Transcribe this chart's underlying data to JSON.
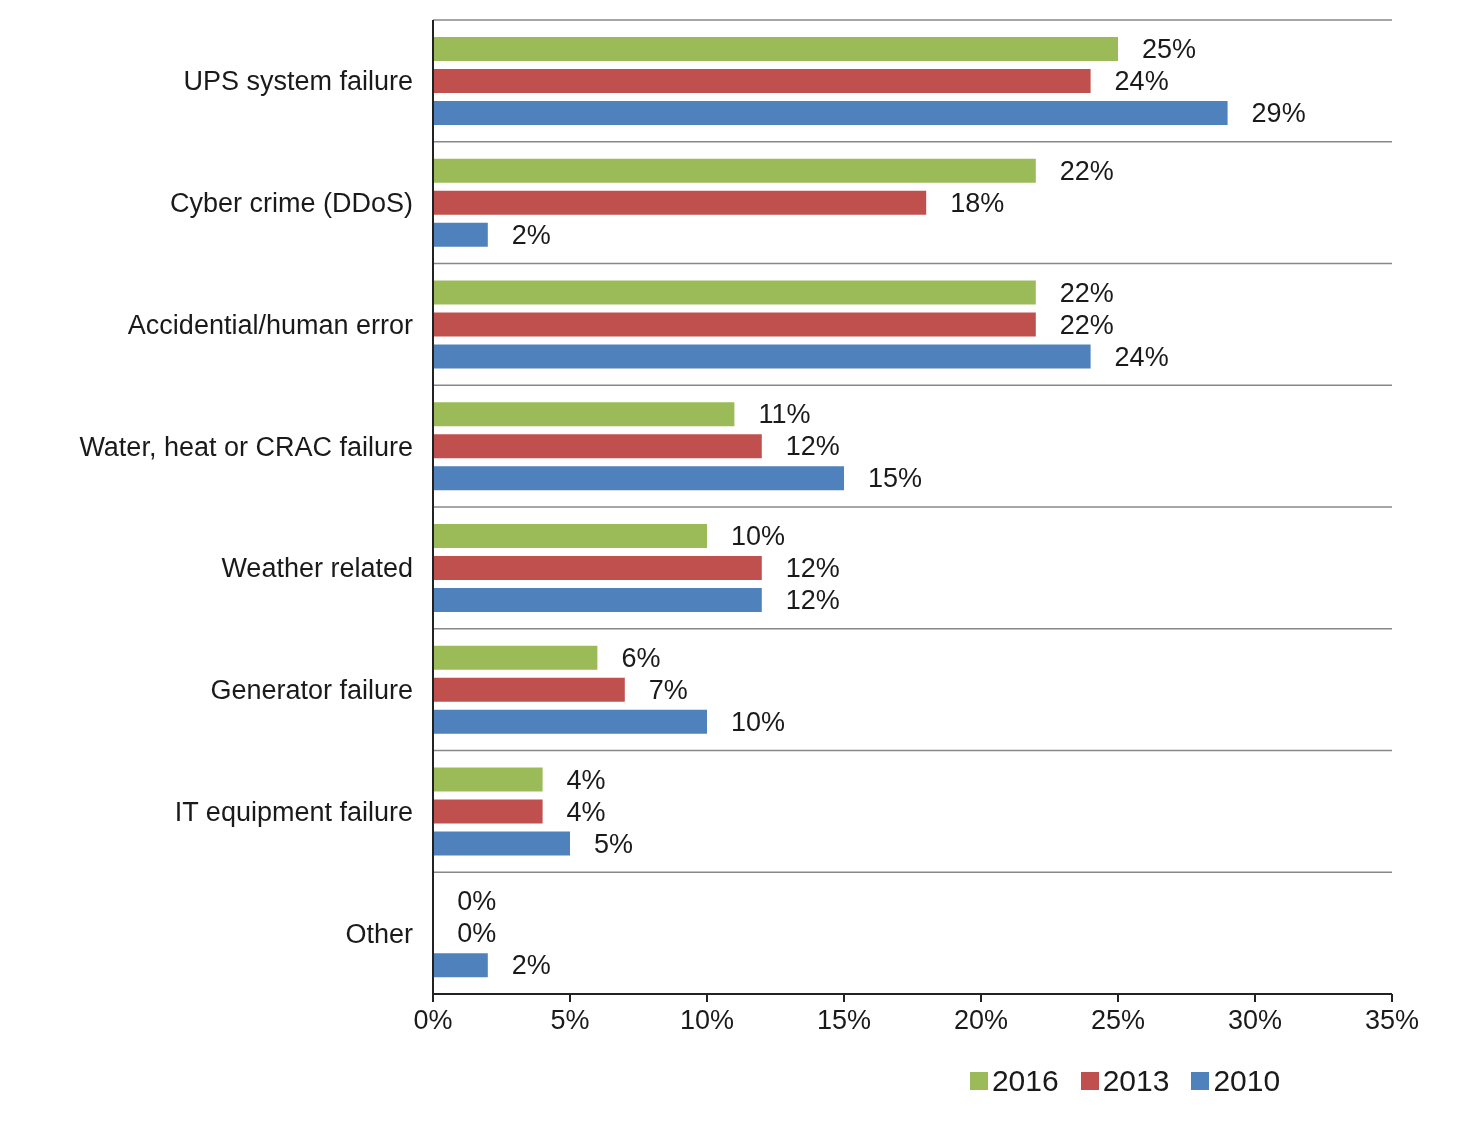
{
  "chart_data": {
    "type": "bar",
    "orientation": "horizontal",
    "categories": [
      "UPS system failure",
      "Cyber crime (DDoS)",
      "Accidential/human error",
      "Water, heat or CRAC failure",
      "Weather related",
      "Generator failure",
      "IT equipment failure",
      "Other"
    ],
    "series": [
      {
        "name": "2016",
        "color": "#9bbb59",
        "values": [
          25,
          22,
          22,
          11,
          10,
          6,
          4,
          0
        ],
        "value_labels": [
          "25%",
          "22%",
          "22%",
          "11%",
          "10%",
          "6%",
          "4%",
          "0%"
        ]
      },
      {
        "name": "2013",
        "color": "#c0504d",
        "values": [
          24,
          18,
          22,
          12,
          12,
          7,
          4,
          0
        ],
        "value_labels": [
          "24%",
          "18%",
          "22%",
          "12%",
          "12%",
          "7%",
          "4%",
          "0%"
        ]
      },
      {
        "name": "2010",
        "color": "#4f81bd",
        "values": [
          29,
          2,
          24,
          15,
          12,
          10,
          5,
          2
        ],
        "value_labels": [
          "29%",
          "2%",
          "24%",
          "15%",
          "12%",
          "10%",
          "5%",
          "2%"
        ]
      }
    ],
    "xlim": [
      0,
      35
    ],
    "xticks": [
      {
        "value": 0,
        "label": "0%"
      },
      {
        "value": 5,
        "label": "5%"
      },
      {
        "value": 10,
        "label": "10%"
      },
      {
        "value": 15,
        "label": "15%"
      },
      {
        "value": 20,
        "label": "20%"
      },
      {
        "value": 25,
        "label": "25%"
      },
      {
        "value": 30,
        "label": "30%"
      },
      {
        "value": 35,
        "label": "35%"
      }
    ],
    "grid": "y",
    "legend": "bottom"
  }
}
